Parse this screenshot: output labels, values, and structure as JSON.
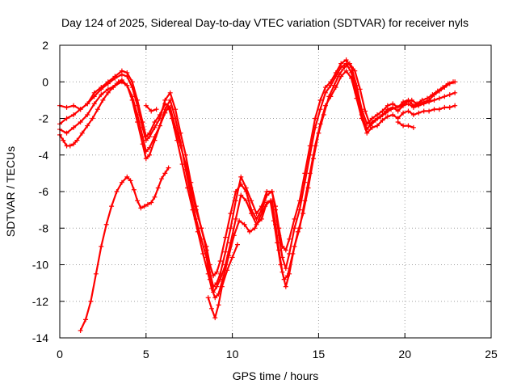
{
  "chart_data": {
    "type": "scatter",
    "title": "Day 124 of 2025, Sidereal Day-to-day VTEC variation (SDTVAR) for receiver nyls",
    "xlabel": "GPS time / hours",
    "ylabel": "SDTVAR / TECUs",
    "xlim": [
      0,
      25
    ],
    "ylim": [
      -14,
      2
    ],
    "xticks": [
      0,
      5,
      10,
      15,
      20,
      25
    ],
    "yticks": [
      -14,
      -12,
      -10,
      -8,
      -6,
      -4,
      -2,
      0,
      2
    ],
    "grid": true,
    "marker": "+",
    "color": "#ff0000",
    "series": [
      {
        "x": [
          0.0,
          0.4,
          0.8,
          1.2,
          1.6,
          2.0,
          2.4,
          2.8,
          3.2,
          3.6,
          3.9,
          4.2,
          4.5,
          4.8,
          5.0,
          5.2,
          5.5,
          5.8,
          6.1,
          6.4,
          6.7,
          7.0,
          7.3,
          7.6,
          7.9,
          8.2,
          8.5,
          8.7,
          8.9,
          9.1,
          9.3,
          9.6,
          9.9,
          10.2,
          10.5,
          10.8,
          11.1,
          11.4,
          11.7,
          12.0,
          12.3,
          12.5,
          12.7,
          12.9,
          13.1,
          13.3,
          13.6,
          13.9,
          14.2,
          14.5,
          14.8,
          15.1,
          15.4,
          15.7,
          16.0,
          16.3,
          16.6,
          16.9,
          17.2,
          17.5,
          17.8,
          18.1,
          18.4,
          18.7,
          19.0,
          19.3,
          19.6,
          19.9,
          20.2,
          20.5,
          20.8,
          21.1,
          21.4,
          21.7,
          22.0,
          22.3,
          22.6,
          22.9
        ],
        "y": [
          -1.3,
          -1.4,
          -1.3,
          -1.5,
          -1.2,
          -0.6,
          -0.3,
          0.0,
          0.3,
          0.6,
          0.5,
          0.0,
          -1.0,
          -2.2,
          -3.0,
          -2.8,
          -2.2,
          -1.8,
          -1.2,
          -1.4,
          -2.5,
          -3.5,
          -4.5,
          -5.8,
          -7.0,
          -8.0,
          -9.0,
          -10.0,
          -10.6,
          -10.4,
          -9.8,
          -8.5,
          -7.2,
          -6.0,
          -5.6,
          -6.0,
          -7.0,
          -7.5,
          -7.0,
          -6.2,
          -6.0,
          -6.8,
          -8.0,
          -9.0,
          -9.2,
          -8.6,
          -7.5,
          -6.5,
          -5.0,
          -3.5,
          -2.0,
          -1.0,
          -0.3,
          0.0,
          0.5,
          1.0,
          1.2,
          0.8,
          -0.2,
          -1.5,
          -2.3,
          -2.0,
          -1.8,
          -1.6,
          -1.3,
          -1.2,
          -1.4,
          -1.1,
          -1.0,
          -1.3,
          -1.2,
          -1.1,
          -1.0,
          -0.7,
          -0.5,
          -0.3,
          -0.1,
          0.0
        ]
      },
      {
        "x": [
          0.0,
          0.4,
          0.8,
          1.2,
          1.6,
          2.0,
          2.4,
          2.8,
          3.2,
          3.6,
          3.9,
          4.2,
          4.5,
          4.8,
          5.0,
          5.2,
          5.5,
          5.8,
          6.1,
          6.4,
          6.7,
          7.0,
          7.3,
          7.6,
          7.9,
          8.2,
          8.5,
          8.7,
          8.9,
          9.1,
          9.3,
          9.6,
          9.9,
          10.2,
          10.5,
          10.8,
          11.1,
          11.4,
          11.7,
          12.0,
          12.3,
          12.5,
          12.7,
          12.9,
          13.1,
          13.3,
          13.6,
          13.9,
          14.2,
          14.5,
          14.8,
          15.1,
          15.4,
          15.7,
          16.0,
          16.3,
          16.6,
          16.9,
          17.2,
          17.5,
          17.8,
          18.1,
          18.4,
          18.7,
          19.0,
          19.3,
          19.6,
          19.9,
          20.2,
          20.5,
          20.8,
          21.1,
          21.4,
          21.7,
          22.0,
          22.3,
          22.6,
          22.9
        ],
        "y": [
          -2.3,
          -2.0,
          -1.8,
          -1.5,
          -1.2,
          -0.8,
          -0.4,
          -0.1,
          0.2,
          0.4,
          0.3,
          -0.3,
          -1.3,
          -2.5,
          -3.2,
          -3.0,
          -2.5,
          -2.0,
          -1.0,
          -0.6,
          -1.5,
          -2.8,
          -4.0,
          -5.5,
          -6.8,
          -8.0,
          -9.2,
          -10.4,
          -11.2,
          -11.0,
          -10.5,
          -9.3,
          -8.0,
          -6.5,
          -5.2,
          -5.8,
          -6.5,
          -7.2,
          -6.8,
          -6.0,
          -6.0,
          -7.0,
          -8.4,
          -9.6,
          -10.2,
          -9.4,
          -8.0,
          -7.0,
          -5.5,
          -4.0,
          -2.5,
          -1.5,
          -0.6,
          -0.2,
          0.3,
          0.8,
          1.0,
          0.5,
          -0.6,
          -1.8,
          -2.6,
          -2.2,
          -2.0,
          -1.8,
          -1.5,
          -1.4,
          -1.6,
          -1.3,
          -1.2,
          -1.4,
          -1.3,
          -1.2,
          -1.1,
          -1.0,
          -0.9,
          -0.8,
          -0.7,
          -0.6
        ]
      },
      {
        "x": [
          0.0,
          0.4,
          0.8,
          1.2,
          1.6,
          2.0,
          2.4,
          2.8,
          3.2,
          3.6,
          3.9,
          4.2,
          4.5,
          4.8,
          5.0,
          5.2,
          5.5,
          5.8,
          6.1,
          6.4,
          6.7,
          7.0,
          7.3,
          7.6,
          7.9,
          8.2,
          8.5,
          8.7,
          8.9,
          9.1,
          9.3,
          9.6,
          9.9,
          10.2,
          10.5,
          10.8,
          11.1,
          11.4,
          11.7,
          12.0,
          12.3,
          12.5,
          12.7,
          12.9,
          13.1,
          13.3,
          13.6,
          13.9,
          14.2,
          14.5,
          14.8,
          15.1,
          15.4,
          15.7,
          16.0,
          16.3,
          16.6,
          16.9,
          17.2,
          17.5,
          17.8,
          18.1,
          18.4,
          18.7,
          19.0,
          19.3,
          19.6,
          19.9,
          20.2,
          20.5,
          20.8,
          21.1,
          21.4,
          21.7,
          22.0,
          22.3,
          22.6,
          22.9
        ],
        "y": [
          -2.6,
          -2.8,
          -2.5,
          -2.2,
          -1.8,
          -1.2,
          -0.7,
          -0.4,
          -0.2,
          0.0,
          -0.2,
          -0.8,
          -1.8,
          -3.0,
          -3.8,
          -3.6,
          -3.0,
          -2.4,
          -1.5,
          -1.0,
          -2.0,
          -3.3,
          -4.8,
          -6.2,
          -7.5,
          -8.6,
          -9.6,
          -10.8,
          -11.5,
          -11.2,
          -10.8,
          -10.0,
          -8.8,
          -7.5,
          -6.2,
          -6.5,
          -7.2,
          -7.8,
          -7.5,
          -6.6,
          -6.5,
          -7.8,
          -9.2,
          -10.4,
          -11.2,
          -10.5,
          -9.0,
          -8.0,
          -6.5,
          -5.0,
          -3.5,
          -2.3,
          -1.3,
          -0.8,
          -0.3,
          0.3,
          0.6,
          0.2,
          -0.9,
          -2.0,
          -2.8,
          -2.5,
          -2.4,
          -2.1,
          -1.9,
          -1.8,
          -2.0,
          -1.7,
          -1.6,
          -1.8,
          -1.7,
          -1.6,
          -1.6,
          -1.5,
          -1.5,
          -1.4,
          -1.4,
          -1.3
        ]
      },
      {
        "x": [
          0.0,
          0.2,
          0.4,
          0.6,
          0.8,
          1.0,
          1.3,
          1.6,
          1.9,
          2.2,
          2.5,
          2.8,
          3.1,
          3.4,
          3.6,
          3.9,
          4.2,
          4.5,
          4.8,
          5.0,
          5.2,
          5.5,
          5.8,
          6.1,
          6.3,
          6.5,
          6.8,
          7.1,
          7.4,
          7.7,
          8.0,
          8.3,
          8.6,
          8.8,
          9.0,
          9.2,
          9.5,
          9.8,
          10.1,
          10.4,
          10.7,
          11.0,
          11.3,
          11.6,
          11.9,
          12.2,
          12.4,
          12.6,
          12.8,
          13.0,
          13.2,
          13.5,
          13.8,
          14.1,
          14.4,
          14.7,
          15.0,
          15.3,
          15.6,
          15.9,
          16.2,
          16.5,
          16.8,
          17.1,
          17.4,
          17.7,
          18.0,
          18.3,
          18.6,
          18.9,
          19.2,
          19.5,
          19.8,
          20.1,
          20.4,
          20.7,
          21.0,
          21.3,
          21.6,
          21.9,
          22.2,
          22.5,
          22.8
        ],
        "y": [
          -2.9,
          -3.2,
          -3.5,
          -3.5,
          -3.4,
          -3.2,
          -2.8,
          -2.4,
          -2.0,
          -1.5,
          -1.0,
          -0.6,
          -0.3,
          0.0,
          0.1,
          -0.2,
          -1.0,
          -2.2,
          -3.4,
          -4.2,
          -4.0,
          -3.2,
          -2.4,
          -1.7,
          -1.4,
          -2.0,
          -3.2,
          -4.5,
          -5.8,
          -7.0,
          -8.2,
          -9.4,
          -10.5,
          -11.3,
          -11.8,
          -11.6,
          -10.6,
          -9.5,
          -8.4,
          -7.6,
          -7.8,
          -8.2,
          -8.0,
          -7.4,
          -6.8,
          -6.5,
          -7.6,
          -8.8,
          -10.0,
          -10.8,
          -10.6,
          -9.4,
          -8.2,
          -7.2,
          -5.8,
          -4.2,
          -2.8,
          -1.8,
          -0.8,
          -0.2,
          0.4,
          0.8,
          1.0,
          0.6,
          -0.4,
          -1.6,
          -2.4,
          -2.1,
          -1.9,
          -1.7,
          -1.5,
          -1.4,
          -1.3,
          -1.1,
          -1.0,
          -1.2,
          -1.0,
          -0.9,
          -0.7,
          -0.5,
          -0.3,
          -0.1,
          0.0
        ]
      },
      {
        "x": [
          1.2,
          1.5,
          1.8,
          2.1,
          2.4,
          2.7,
          3.0,
          3.3,
          3.6,
          3.9,
          4.1,
          4.3,
          4.5,
          4.7,
          4.9,
          5.1,
          5.3,
          5.5,
          5.7,
          5.9,
          6.1,
          6.3
        ],
        "y": [
          -13.6,
          -13.0,
          -12.0,
          -10.5,
          -9.0,
          -7.8,
          -6.8,
          -6.0,
          -5.5,
          -5.2,
          -5.4,
          -5.9,
          -6.5,
          -6.9,
          -6.8,
          -6.7,
          -6.6,
          -6.3,
          -5.8,
          -5.3,
          -5.0,
          -4.7
        ]
      },
      {
        "x": [
          8.6,
          8.8,
          9.0,
          9.2,
          9.4,
          9.7,
          10.0,
          10.3
        ],
        "y": [
          -11.8,
          -12.4,
          -12.9,
          -12.2,
          -11.2,
          -10.3,
          -9.6,
          -8.9
        ]
      },
      {
        "x": [
          5.0,
          5.3,
          5.6
        ],
        "y": [
          -1.3,
          -1.6,
          -1.5
        ]
      },
      {
        "x": [
          19.6,
          19.9,
          20.2,
          20.5
        ],
        "y": [
          -2.2,
          -2.4,
          -2.4,
          -2.5
        ]
      }
    ]
  }
}
